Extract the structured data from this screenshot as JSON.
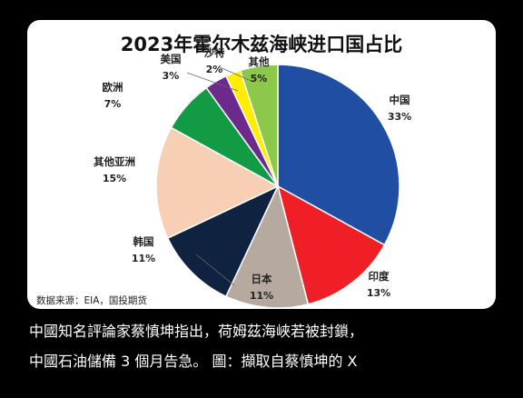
{
  "chart_data": {
    "type": "pie",
    "title": "2023年霍尔木兹海峡进口国占比",
    "source": "数据来源：EIA，国投期货",
    "slices": [
      {
        "name": "中国",
        "label": "33%",
        "value": 33,
        "color": "#1f4ea3"
      },
      {
        "name": "印度",
        "label": "13%",
        "value": 13,
        "color": "#ee1f25"
      },
      {
        "name": "日本",
        "label": "11%",
        "value": 11,
        "color": "#b6aaa0"
      },
      {
        "name": "韩国",
        "label": "11%",
        "value": 11,
        "color": "#0f2340"
      },
      {
        "name": "其他亚洲",
        "label": "15%",
        "value": 15,
        "color": "#f7cfb4"
      },
      {
        "name": "欧洲",
        "label": "7%",
        "value": 7,
        "color": "#129a45"
      },
      {
        "name": "美国",
        "label": "3%",
        "value": 3,
        "color": "#6b2a8c"
      },
      {
        "name": "沙特",
        "label": "2%",
        "value": 2,
        "color": "#ffee00"
      },
      {
        "name": "其他",
        "label": "5%",
        "value": 5,
        "color": "#8cc84a"
      }
    ]
  },
  "caption": {
    "line1": "中國知名評論家蔡慎坤指出，荷姆茲海峽若被封鎖，",
    "line2": "中國石油儲備 3 個月告急。 圖：擷取自蔡慎坤的 X"
  }
}
